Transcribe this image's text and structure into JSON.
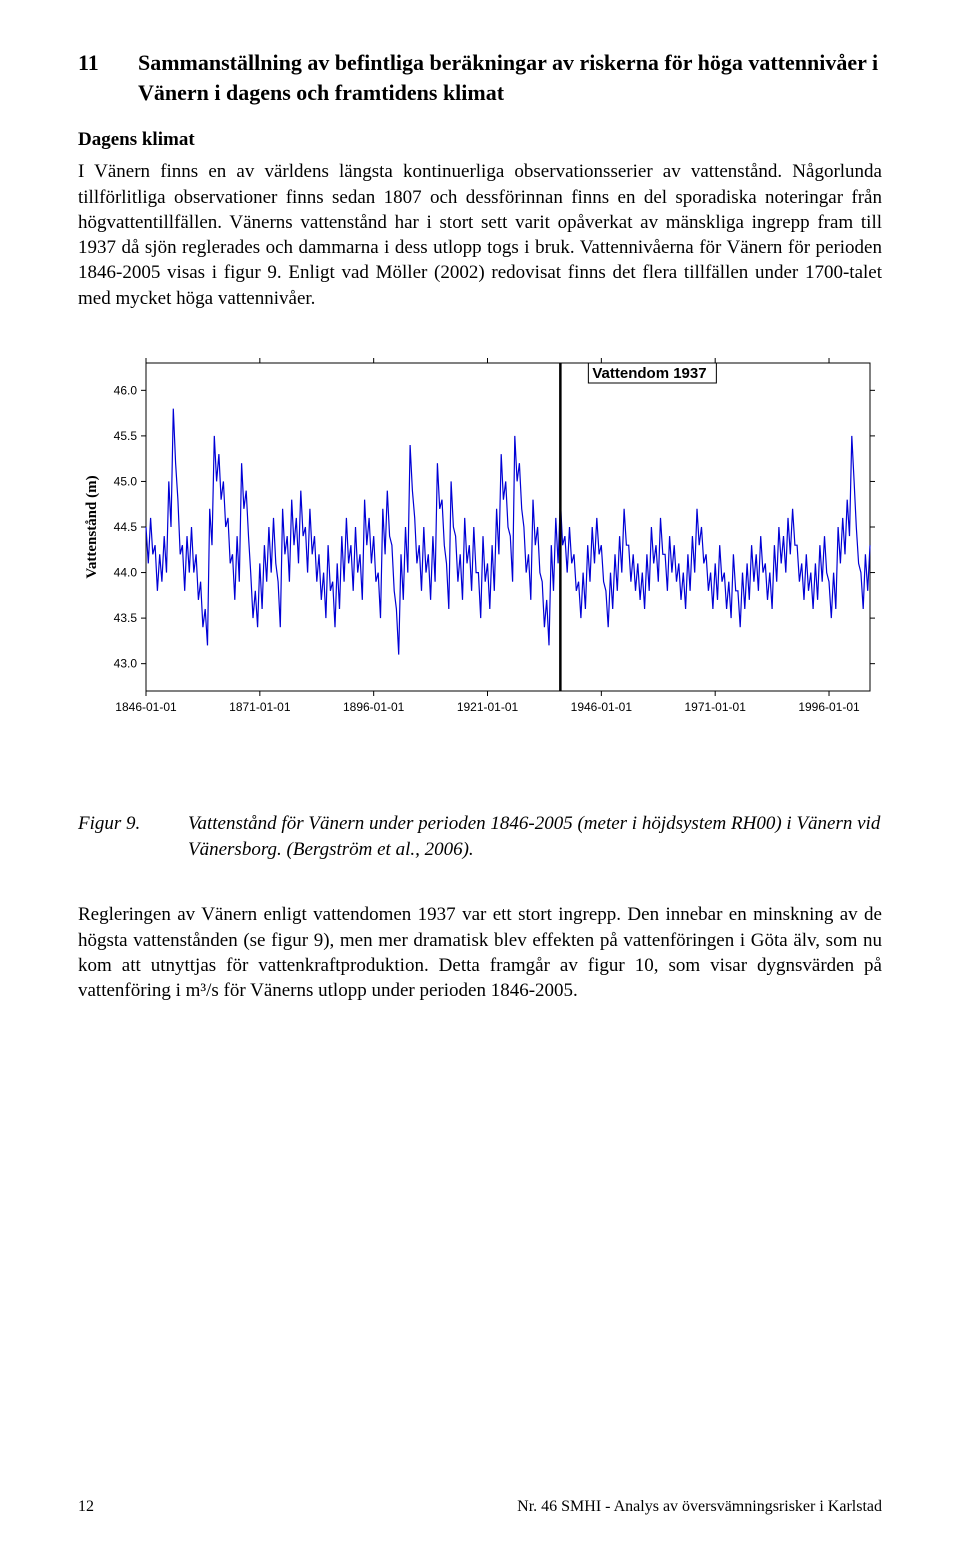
{
  "heading": {
    "number": "11",
    "title": "Sammanställning av befintliga beräkningar av riskerna för höga vattennivåer i Vänern i dagens och framtidens klimat"
  },
  "sub_heading": "Dagens klimat",
  "para1": "I Vänern finns en av världens längsta kontinuerliga observationsserier av vattenstånd. Någorlunda tillförlitliga observationer finns sedan 1807 och dessförinnan finns en del sporadiska noteringar från högvattentillfällen. Vänerns vattenstånd har i stort sett varit opåverkat av mänskliga ingrepp fram till 1937 då sjön reglerades och dammarna i dess utlopp togs i bruk. Vattennivåerna för Vänern för perioden 1846-2005 visas i figur 9. Enligt vad Möller (2002) redovisat finns det flera tillfällen under 1700-talet med mycket höga vattennivåer.",
  "figure": {
    "label": "Figur 9.",
    "caption": "Vattenstånd för Vänern under perioden 1846-2005 (meter i höjdsystem RH00) i Vänern vid Vänersborg. (Bergström et al., 2006)."
  },
  "para2": "Regleringen av Vänern enligt vattendomen 1937 var ett stort ingrepp. Den innebar en minskning av de högsta vattenstånden (se figur 9), men mer dramatisk blev effekten på vattenföringen i Göta älv, som nu kom att utnyttjas för vattenkraftproduktion. Detta framgår av figur 10, som visar dygnsvärden på vattenföring i m³/s för Vänerns utlopp under perioden 1846-2005.",
  "footer": {
    "page": "12",
    "text": "Nr. 46 SMHI - Analys av översvämningsrisker i Karlstad"
  },
  "chart": {
    "type": "line",
    "ylabel": "Vattenstånd (m)",
    "ylabel_fontsize": 15,
    "ylabel_fontweight": "bold",
    "annotation": {
      "text": "Vattendom 1937",
      "fontsize": 15,
      "fontweight": "bold",
      "x": 1937
    },
    "line_color": "#0000d6",
    "line_width": 1.2,
    "axis_color": "#000000",
    "tick_fontsize": 12,
    "tick_font": "Arial, sans-serif",
    "background_color": "#ffffff",
    "grid": false,
    "xlim": [
      1846,
      2005
    ],
    "ylim": [
      42.7,
      46.3
    ],
    "yticks": [
      43.0,
      43.5,
      44.0,
      44.5,
      45.0,
      45.5,
      46.0
    ],
    "xticks": [
      {
        "pos": 1846,
        "label": "1846-01-01"
      },
      {
        "pos": 1871,
        "label": "1871-01-01"
      },
      {
        "pos": 1896,
        "label": "1896-01-01"
      },
      {
        "pos": 1921,
        "label": "1921-01-01"
      },
      {
        "pos": 1946,
        "label": "1946-01-01"
      },
      {
        "pos": 1971,
        "label": "1971-01-01"
      },
      {
        "pos": 1996,
        "label": "1996-01-01"
      }
    ],
    "vline_x": 1937,
    "vline_width": 2.5,
    "vline_color": "#000000",
    "series": [
      [
        1846,
        44.5
      ],
      [
        1846.5,
        44.1
      ],
      [
        1847,
        44.6
      ],
      [
        1847.5,
        44.2
      ],
      [
        1848,
        44.3
      ],
      [
        1848.5,
        43.8
      ],
      [
        1849,
        44.2
      ],
      [
        1849.5,
        43.9
      ],
      [
        1850,
        44.4
      ],
      [
        1850.5,
        44.0
      ],
      [
        1851,
        45.0
      ],
      [
        1851.5,
        44.5
      ],
      [
        1852,
        45.8
      ],
      [
        1852.5,
        45.2
      ],
      [
        1853,
        44.8
      ],
      [
        1853.5,
        44.2
      ],
      [
        1854,
        44.3
      ],
      [
        1854.5,
        43.8
      ],
      [
        1855,
        44.4
      ],
      [
        1855.5,
        44.0
      ],
      [
        1856,
        44.5
      ],
      [
        1856.5,
        44.0
      ],
      [
        1857,
        44.2
      ],
      [
        1857.5,
        43.7
      ],
      [
        1858,
        43.9
      ],
      [
        1858.5,
        43.4
      ],
      [
        1859,
        43.6
      ],
      [
        1859.5,
        43.2
      ],
      [
        1860,
        44.7
      ],
      [
        1860.5,
        44.3
      ],
      [
        1861,
        45.5
      ],
      [
        1861.5,
        45.0
      ],
      [
        1862,
        45.3
      ],
      [
        1862.5,
        44.8
      ],
      [
        1863,
        45.0
      ],
      [
        1863.5,
        44.5
      ],
      [
        1864,
        44.6
      ],
      [
        1864.5,
        44.1
      ],
      [
        1865,
        44.2
      ],
      [
        1865.5,
        43.7
      ],
      [
        1866,
        44.4
      ],
      [
        1866.5,
        43.9
      ],
      [
        1867,
        45.2
      ],
      [
        1867.5,
        44.7
      ],
      [
        1868,
        44.9
      ],
      [
        1868.5,
        44.4
      ],
      [
        1869,
        44.0
      ],
      [
        1869.5,
        43.5
      ],
      [
        1870,
        43.8
      ],
      [
        1870.5,
        43.4
      ],
      [
        1871,
        44.1
      ],
      [
        1871.5,
        43.6
      ],
      [
        1872,
        44.3
      ],
      [
        1872.5,
        43.9
      ],
      [
        1873,
        44.5
      ],
      [
        1873.5,
        44.0
      ],
      [
        1874,
        44.6
      ],
      [
        1874.5,
        44.1
      ],
      [
        1875,
        43.9
      ],
      [
        1875.5,
        43.4
      ],
      [
        1876,
        44.7
      ],
      [
        1876.5,
        44.2
      ],
      [
        1877,
        44.4
      ],
      [
        1877.5,
        43.9
      ],
      [
        1878,
        44.8
      ],
      [
        1878.5,
        44.3
      ],
      [
        1879,
        44.6
      ],
      [
        1879.5,
        44.1
      ],
      [
        1880,
        44.9
      ],
      [
        1880.5,
        44.4
      ],
      [
        1881,
        44.5
      ],
      [
        1881.5,
        44.0
      ],
      [
        1882,
        44.7
      ],
      [
        1882.5,
        44.2
      ],
      [
        1883,
        44.4
      ],
      [
        1883.5,
        43.9
      ],
      [
        1884,
        44.2
      ],
      [
        1884.5,
        43.7
      ],
      [
        1885,
        44.0
      ],
      [
        1885.5,
        43.5
      ],
      [
        1886,
        44.3
      ],
      [
        1886.5,
        43.8
      ],
      [
        1887,
        43.9
      ],
      [
        1887.5,
        43.4
      ],
      [
        1888,
        44.1
      ],
      [
        1888.5,
        43.6
      ],
      [
        1889,
        44.4
      ],
      [
        1889.5,
        43.9
      ],
      [
        1890,
        44.6
      ],
      [
        1890.5,
        44.1
      ],
      [
        1891,
        44.3
      ],
      [
        1891.5,
        43.8
      ],
      [
        1892,
        44.5
      ],
      [
        1892.5,
        44.0
      ],
      [
        1893,
        44.2
      ],
      [
        1893.5,
        43.7
      ],
      [
        1894,
        44.8
      ],
      [
        1894.5,
        44.3
      ],
      [
        1895,
        44.6
      ],
      [
        1895.5,
        44.1
      ],
      [
        1896,
        44.4
      ],
      [
        1896.5,
        43.9
      ],
      [
        1897,
        44.0
      ],
      [
        1897.5,
        43.5
      ],
      [
        1898,
        44.7
      ],
      [
        1898.5,
        44.2
      ],
      [
        1899,
        44.9
      ],
      [
        1899.5,
        44.4
      ],
      [
        1900,
        44.3
      ],
      [
        1900.5,
        43.8
      ],
      [
        1901,
        43.6
      ],
      [
        1901.5,
        43.1
      ],
      [
        1902,
        44.2
      ],
      [
        1902.5,
        43.7
      ],
      [
        1903,
        44.5
      ],
      [
        1903.5,
        44.0
      ],
      [
        1904,
        45.4
      ],
      [
        1904.5,
        44.9
      ],
      [
        1905,
        44.6
      ],
      [
        1905.5,
        44.1
      ],
      [
        1906,
        44.3
      ],
      [
        1906.5,
        43.8
      ],
      [
        1907,
        44.5
      ],
      [
        1907.5,
        44.0
      ],
      [
        1908,
        44.2
      ],
      [
        1908.5,
        43.7
      ],
      [
        1909,
        44.4
      ],
      [
        1909.5,
        43.9
      ],
      [
        1910,
        45.2
      ],
      [
        1910.5,
        44.7
      ],
      [
        1911,
        44.8
      ],
      [
        1911.5,
        44.3
      ],
      [
        1912,
        44.1
      ],
      [
        1912.5,
        43.6
      ],
      [
        1913,
        45.0
      ],
      [
        1913.5,
        44.5
      ],
      [
        1914,
        44.4
      ],
      [
        1914.5,
        43.9
      ],
      [
        1915,
        44.2
      ],
      [
        1915.5,
        43.7
      ],
      [
        1916,
        44.6
      ],
      [
        1916.5,
        44.1
      ],
      [
        1917,
        44.3
      ],
      [
        1917.5,
        43.8
      ],
      [
        1918,
        44.5
      ],
      [
        1918.5,
        44.0
      ],
      [
        1919,
        44.0
      ],
      [
        1919.5,
        43.5
      ],
      [
        1920,
        44.4
      ],
      [
        1920.5,
        43.9
      ],
      [
        1921,
        44.1
      ],
      [
        1921.5,
        43.6
      ],
      [
        1922,
        44.3
      ],
      [
        1922.5,
        43.8
      ],
      [
        1923,
        44.7
      ],
      [
        1923.5,
        44.2
      ],
      [
        1924,
        45.3
      ],
      [
        1924.5,
        44.8
      ],
      [
        1925,
        45.0
      ],
      [
        1925.5,
        44.5
      ],
      [
        1926,
        44.4
      ],
      [
        1926.5,
        43.9
      ],
      [
        1927,
        45.5
      ],
      [
        1927.5,
        45.0
      ],
      [
        1928,
        45.2
      ],
      [
        1928.5,
        44.7
      ],
      [
        1929,
        44.5
      ],
      [
        1929.5,
        44.0
      ],
      [
        1930,
        44.2
      ],
      [
        1930.5,
        43.7
      ],
      [
        1931,
        44.8
      ],
      [
        1931.5,
        44.3
      ],
      [
        1932,
        44.5
      ],
      [
        1932.5,
        44.0
      ],
      [
        1933,
        43.9
      ],
      [
        1933.5,
        43.4
      ],
      [
        1934,
        43.7
      ],
      [
        1934.5,
        43.2
      ],
      [
        1935,
        44.3
      ],
      [
        1935.5,
        43.8
      ],
      [
        1936,
        44.6
      ],
      [
        1936.5,
        44.1
      ],
      [
        1937,
        44.8
      ],
      [
        1937.5,
        44.3
      ],
      [
        1938,
        44.4
      ],
      [
        1938.5,
        44.0
      ],
      [
        1939,
        44.5
      ],
      [
        1939.5,
        44.1
      ],
      [
        1940,
        44.2
      ],
      [
        1940.5,
        43.8
      ],
      [
        1941,
        43.9
      ],
      [
        1941.5,
        43.5
      ],
      [
        1942,
        44.0
      ],
      [
        1942.5,
        43.6
      ],
      [
        1943,
        44.3
      ],
      [
        1943.5,
        43.9
      ],
      [
        1944,
        44.5
      ],
      [
        1944.5,
        44.1
      ],
      [
        1945,
        44.6
      ],
      [
        1945.5,
        44.2
      ],
      [
        1946,
        44.3
      ],
      [
        1946.5,
        43.9
      ],
      [
        1947,
        43.8
      ],
      [
        1947.5,
        43.4
      ],
      [
        1948,
        44.0
      ],
      [
        1948.5,
        43.6
      ],
      [
        1949,
        44.2
      ],
      [
        1949.5,
        43.8
      ],
      [
        1950,
        44.4
      ],
      [
        1950.5,
        44.0
      ],
      [
        1951,
        44.7
      ],
      [
        1951.5,
        44.3
      ],
      [
        1952,
        44.3
      ],
      [
        1952.5,
        43.9
      ],
      [
        1953,
        44.2
      ],
      [
        1953.5,
        43.8
      ],
      [
        1954,
        44.1
      ],
      [
        1954.5,
        43.7
      ],
      [
        1955,
        44.0
      ],
      [
        1955.5,
        43.6
      ],
      [
        1956,
        44.2
      ],
      [
        1956.5,
        43.8
      ],
      [
        1957,
        44.5
      ],
      [
        1957.5,
        44.1
      ],
      [
        1958,
        44.3
      ],
      [
        1958.5,
        43.9
      ],
      [
        1959,
        44.6
      ],
      [
        1959.5,
        44.2
      ],
      [
        1960,
        44.2
      ],
      [
        1960.5,
        43.8
      ],
      [
        1961,
        44.4
      ],
      [
        1961.5,
        44.0
      ],
      [
        1962,
        44.3
      ],
      [
        1962.5,
        43.9
      ],
      [
        1963,
        44.1
      ],
      [
        1963.5,
        43.7
      ],
      [
        1964,
        44.0
      ],
      [
        1964.5,
        43.6
      ],
      [
        1965,
        44.2
      ],
      [
        1965.5,
        43.8
      ],
      [
        1966,
        44.4
      ],
      [
        1966.5,
        44.0
      ],
      [
        1967,
        44.7
      ],
      [
        1967.5,
        44.3
      ],
      [
        1968,
        44.5
      ],
      [
        1968.5,
        44.1
      ],
      [
        1969,
        44.2
      ],
      [
        1969.5,
        43.8
      ],
      [
        1970,
        44.0
      ],
      [
        1970.5,
        43.6
      ],
      [
        1971,
        44.1
      ],
      [
        1971.5,
        43.7
      ],
      [
        1972,
        44.3
      ],
      [
        1972.5,
        43.9
      ],
      [
        1973,
        44.0
      ],
      [
        1973.5,
        43.6
      ],
      [
        1974,
        43.9
      ],
      [
        1974.5,
        43.5
      ],
      [
        1975,
        44.2
      ],
      [
        1975.5,
        43.8
      ],
      [
        1976,
        43.8
      ],
      [
        1976.5,
        43.4
      ],
      [
        1977,
        44.0
      ],
      [
        1977.5,
        43.6
      ],
      [
        1978,
        44.1
      ],
      [
        1978.5,
        43.7
      ],
      [
        1979,
        44.3
      ],
      [
        1979.5,
        43.9
      ],
      [
        1980,
        44.2
      ],
      [
        1980.5,
        43.8
      ],
      [
        1981,
        44.4
      ],
      [
        1981.5,
        44.0
      ],
      [
        1982,
        44.1
      ],
      [
        1982.5,
        43.7
      ],
      [
        1983,
        44.0
      ],
      [
        1983.5,
        43.6
      ],
      [
        1984,
        44.3
      ],
      [
        1984.5,
        43.9
      ],
      [
        1985,
        44.5
      ],
      [
        1985.5,
        44.1
      ],
      [
        1986,
        44.4
      ],
      [
        1986.5,
        44.0
      ],
      [
        1987,
        44.6
      ],
      [
        1987.5,
        44.2
      ],
      [
        1988,
        44.7
      ],
      [
        1988.5,
        44.3
      ],
      [
        1989,
        44.3
      ],
      [
        1989.5,
        43.9
      ],
      [
        1990,
        44.1
      ],
      [
        1990.5,
        43.7
      ],
      [
        1991,
        44.2
      ],
      [
        1991.5,
        43.8
      ],
      [
        1992,
        44.0
      ],
      [
        1992.5,
        43.6
      ],
      [
        1993,
        44.1
      ],
      [
        1993.5,
        43.7
      ],
      [
        1994,
        44.3
      ],
      [
        1994.5,
        43.9
      ],
      [
        1995,
        44.4
      ],
      [
        1995.5,
        44.0
      ],
      [
        1996,
        43.9
      ],
      [
        1996.5,
        43.5
      ],
      [
        1997,
        44.0
      ],
      [
        1997.5,
        43.6
      ],
      [
        1998,
        44.5
      ],
      [
        1998.5,
        44.1
      ],
      [
        1999,
        44.6
      ],
      [
        1999.5,
        44.2
      ],
      [
        2000,
        44.8
      ],
      [
        2000.5,
        44.4
      ],
      [
        2001,
        45.5
      ],
      [
        2001.5,
        45.0
      ],
      [
        2002,
        44.5
      ],
      [
        2002.5,
        44.1
      ],
      [
        2003,
        44.0
      ],
      [
        2003.5,
        43.6
      ],
      [
        2004,
        44.2
      ],
      [
        2004.5,
        43.8
      ],
      [
        2005,
        44.3
      ]
    ]
  }
}
